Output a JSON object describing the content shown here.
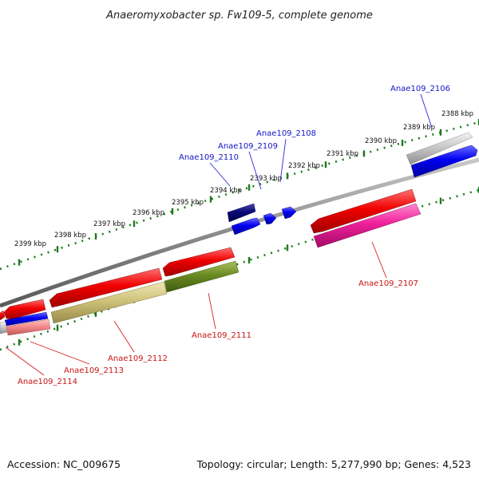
{
  "title": "Anaeromyxobacter sp. Fw109-5, complete genome",
  "footer": {
    "accession": "Accession: NC_009675",
    "topology": "Topology: circular; Length: 5,277,990 bp; Genes: 4,523"
  },
  "colors": {
    "backbone": "#8c8c8c",
    "ticks": "#1e7a1e",
    "forward_label": "#1414c8",
    "reverse_label": "#c81414",
    "leader_forward": "#2828d8",
    "leader_reverse": "#d42020"
  },
  "scale": {
    "unit": "kbp",
    "labels": [
      "2388 kbp",
      "2389 kbp",
      "2390 kbp",
      "2391 kbp",
      "2392 kbp",
      "2393 kbp",
      "2394 kbp",
      "2395 kbp",
      "2396 kbp",
      "2397 kbp",
      "2398 kbp",
      "2399 kbp"
    ]
  },
  "genes": [
    {
      "label": "Anae109_2106",
      "strand": "forward"
    },
    {
      "label": "Anae109_2107",
      "strand": "reverse"
    },
    {
      "label": "Anae109_2108",
      "strand": "forward"
    },
    {
      "label": "Anae109_2109",
      "strand": "forward"
    },
    {
      "label": "Anae109_2110",
      "strand": "forward"
    },
    {
      "label": "Anae109_2111",
      "strand": "reverse"
    },
    {
      "label": "Anae109_2112",
      "strand": "reverse"
    },
    {
      "label": "Anae109_2113",
      "strand": "reverse"
    },
    {
      "label": "Anae109_2114",
      "strand": "reverse"
    }
  ]
}
